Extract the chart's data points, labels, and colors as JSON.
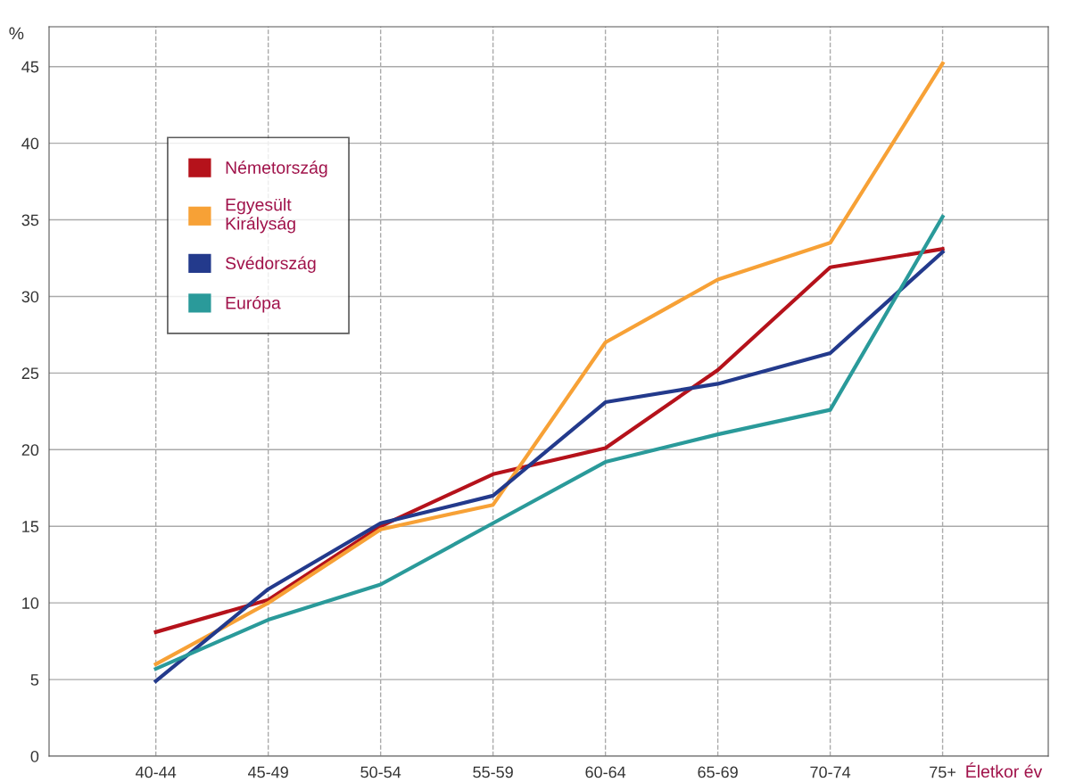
{
  "chart_data": {
    "type": "line",
    "ylabel": "%",
    "xlabel": "Életkor év",
    "categories": [
      "40-44",
      "45-49",
      "50-54",
      "55-59",
      "60-64",
      "65-69",
      "70-74",
      "75+"
    ],
    "series": [
      {
        "name": "Németország",
        "color": "#b5121b",
        "values": [
          8.1,
          10.2,
          15.0,
          18.4,
          20.1,
          25.2,
          31.9,
          33.1
        ]
      },
      {
        "name": "Egyesült\nKirályság",
        "color": "#f7a136",
        "values": [
          6.0,
          10.0,
          14.8,
          16.4,
          27.0,
          31.1,
          33.5,
          45.2
        ]
      },
      {
        "name": "Svédország",
        "color": "#233a8c",
        "values": [
          4.9,
          10.9,
          15.2,
          17.0,
          23.1,
          24.3,
          26.3,
          32.9
        ]
      },
      {
        "name": "Európa",
        "color": "#2a9a9a",
        "values": [
          5.7,
          8.9,
          11.2,
          15.2,
          19.2,
          21.0,
          22.6,
          35.2
        ]
      }
    ],
    "ylim": [
      0,
      47.6
    ],
    "yticks": [
      0,
      5,
      10,
      15,
      20,
      25,
      30,
      35,
      40,
      45
    ],
    "grid": true,
    "legend": "top left",
    "marker": "none",
    "line_style": "solid"
  }
}
